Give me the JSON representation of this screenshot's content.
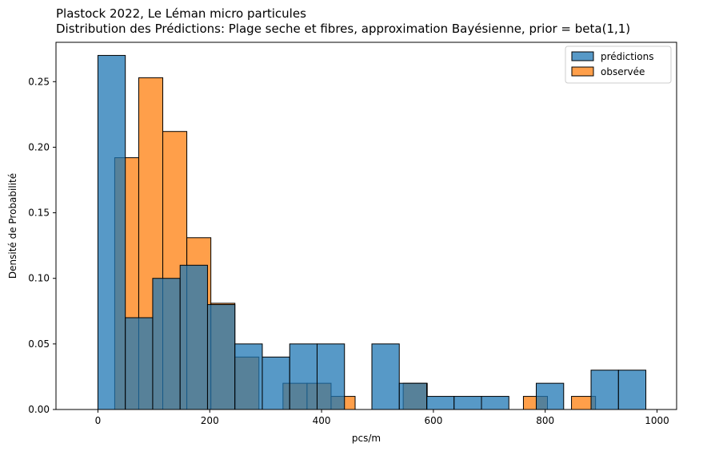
{
  "chart_data": {
    "type": "bar",
    "title": "Plastock 2022, Le Léman micro particules",
    "subtitle": "Distribution des Prédictions: Plage seche et fibres, approximation Bayésienne, prior = beta(1,1)",
    "xlabel": "pcs/m",
    "ylabel": "Densité de Probabilité",
    "xlim": [
      -75,
      1035
    ],
    "ylim": [
      0,
      0.28
    ],
    "xticks": [
      0,
      200,
      400,
      600,
      800,
      1000
    ],
    "yticks": [
      0.0,
      0.05,
      0.1,
      0.15,
      0.2,
      0.25
    ],
    "ytick_labels": [
      "0.00",
      "0.05",
      "0.10",
      "0.15",
      "0.20",
      "0.25"
    ],
    "legend_position": "top-right",
    "series": [
      {
        "name": "observée",
        "color": "#ff7f0e",
        "bins": [
          {
            "x0": 30,
            "x1": 73,
            "value": 0.192
          },
          {
            "x0": 73,
            "x1": 116,
            "value": 0.253
          },
          {
            "x0": 116,
            "x1": 159,
            "value": 0.212
          },
          {
            "x0": 159,
            "x1": 202,
            "value": 0.131
          },
          {
            "x0": 202,
            "x1": 245,
            "value": 0.081
          },
          {
            "x0": 245,
            "x1": 288,
            "value": 0.04
          },
          {
            "x0": 331,
            "x1": 374,
            "value": 0.02
          },
          {
            "x0": 374,
            "x1": 417,
            "value": 0.02
          },
          {
            "x0": 417,
            "x1": 460,
            "value": 0.01
          },
          {
            "x0": 546,
            "x1": 589,
            "value": 0.02
          },
          {
            "x0": 761,
            "x1": 804,
            "value": 0.01
          },
          {
            "x0": 847,
            "x1": 890,
            "value": 0.01
          }
        ]
      },
      {
        "name": "prédictions",
        "color": "#1f77b4",
        "bins": [
          {
            "x0": 0,
            "x1": 49,
            "value": 0.27
          },
          {
            "x0": 49,
            "x1": 98,
            "value": 0.07
          },
          {
            "x0": 98,
            "x1": 147,
            "value": 0.1
          },
          {
            "x0": 147,
            "x1": 196,
            "value": 0.11
          },
          {
            "x0": 196,
            "x1": 245,
            "value": 0.08
          },
          {
            "x0": 245,
            "x1": 294,
            "value": 0.05
          },
          {
            "x0": 294,
            "x1": 343,
            "value": 0.04
          },
          {
            "x0": 343,
            "x1": 392,
            "value": 0.05
          },
          {
            "x0": 392,
            "x1": 441,
            "value": 0.05
          },
          {
            "x0": 490,
            "x1": 539,
            "value": 0.05
          },
          {
            "x0": 539,
            "x1": 588,
            "value": 0.02
          },
          {
            "x0": 588,
            "x1": 637,
            "value": 0.01
          },
          {
            "x0": 637,
            "x1": 686,
            "value": 0.01
          },
          {
            "x0": 686,
            "x1": 735,
            "value": 0.01
          },
          {
            "x0": 784,
            "x1": 833,
            "value": 0.02
          },
          {
            "x0": 882,
            "x1": 931,
            "value": 0.03
          },
          {
            "x0": 931,
            "x1": 980,
            "value": 0.03
          }
        ]
      }
    ]
  },
  "legend": {
    "items": [
      {
        "label": "prédictions",
        "color": "#1f77b4"
      },
      {
        "label": "observée",
        "color": "#ff7f0e"
      }
    ]
  }
}
